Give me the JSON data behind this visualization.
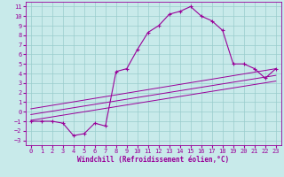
{
  "xlabel": "Windchill (Refroidissement éolien,°C)",
  "bg_color": "#c8eaea",
  "grid_color": "#99cccc",
  "line_color": "#990099",
  "xlim": [
    -0.5,
    23.5
  ],
  "ylim": [
    -3.5,
    11.5
  ],
  "xticks": [
    0,
    1,
    2,
    3,
    4,
    5,
    6,
    7,
    8,
    9,
    10,
    11,
    12,
    13,
    14,
    15,
    16,
    17,
    18,
    19,
    20,
    21,
    22,
    23
  ],
  "yticks": [
    -3,
    -2,
    -1,
    0,
    1,
    2,
    3,
    4,
    5,
    6,
    7,
    8,
    9,
    10,
    11
  ],
  "curve1_x": [
    0,
    1,
    2,
    3,
    4,
    5,
    6,
    7,
    8,
    9,
    10,
    11,
    12,
    13,
    14,
    15,
    16,
    17,
    18,
    19,
    20,
    21,
    22,
    23
  ],
  "curve1_y": [
    -1,
    -1,
    -1,
    -1.2,
    -2.5,
    -2.3,
    -1.2,
    -1.5,
    4.2,
    4.5,
    6.5,
    8.3,
    9.0,
    10.2,
    10.5,
    11.0,
    10.0,
    9.5,
    8.5,
    5.0,
    5.0,
    4.5,
    3.5,
    4.5
  ],
  "line2_x": [
    0,
    23
  ],
  "line2_y": [
    0.3,
    4.5
  ],
  "line3_x": [
    0,
    23
  ],
  "line3_y": [
    -0.3,
    3.8
  ],
  "line4_x": [
    0,
    23
  ],
  "line4_y": [
    -0.9,
    3.2
  ],
  "tick_fontsize": 5.0,
  "label_fontsize": 5.5,
  "marker": "+"
}
